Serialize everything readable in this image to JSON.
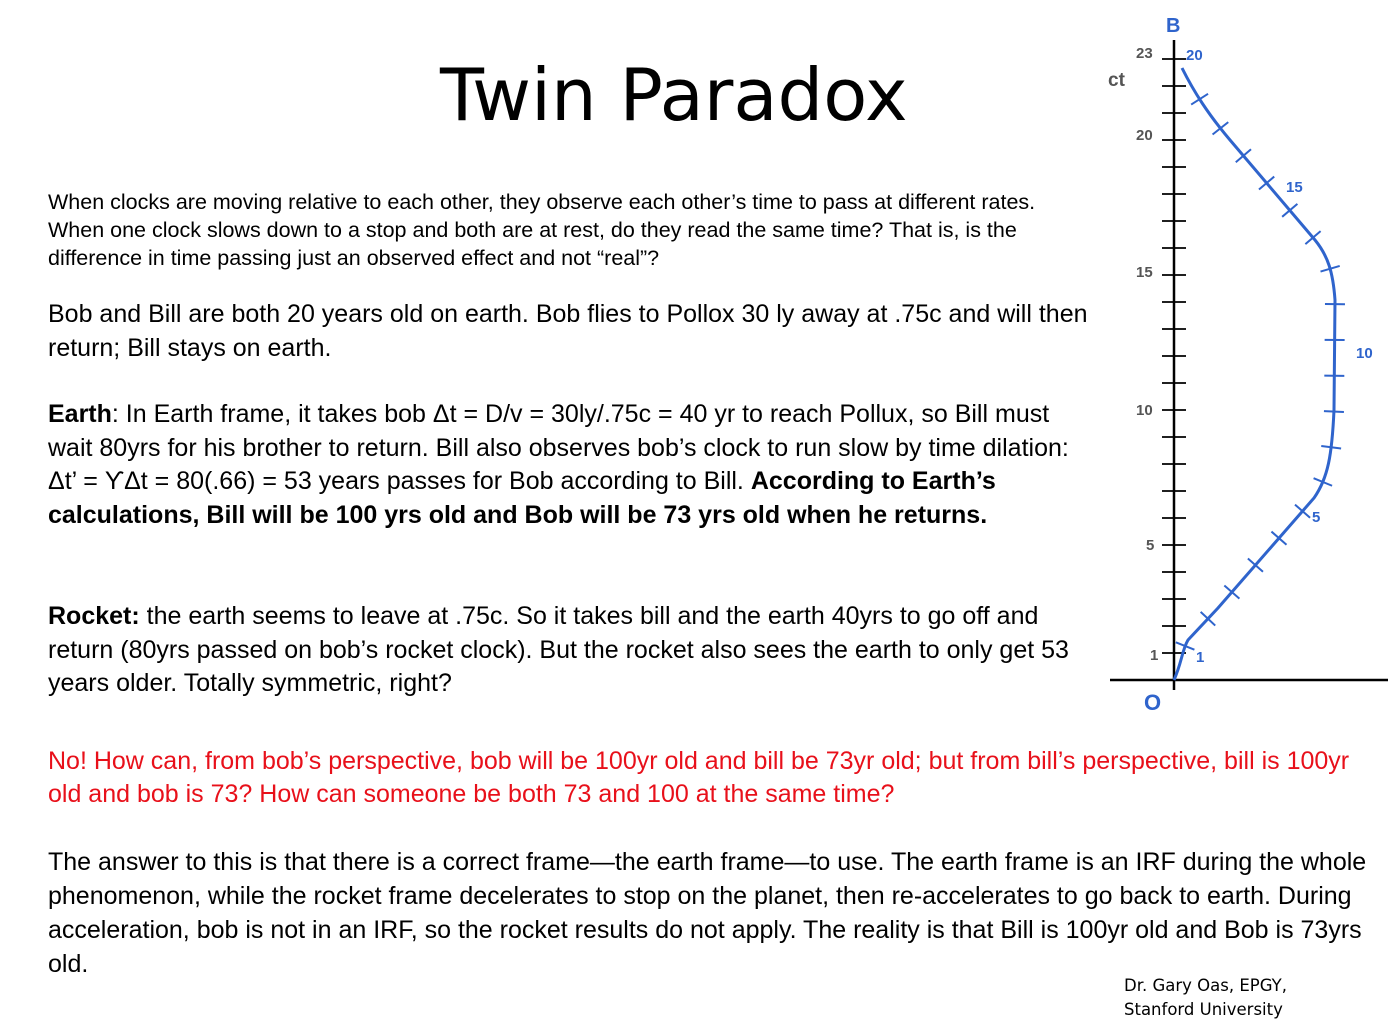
{
  "slide": {
    "title": "Twin Paradox",
    "intro": "When clocks are moving relative to each other, they observe each other’s time to pass at different rates. When one clock slows down to a stop and both are at rest, do they read the same time? That is, is the difference in time passing just an observed effect and not “real”?",
    "setup": "Bob and Bill are both 20 years old on earth. Bob flies to Pollox 30 ly away at .75c and will then return; Bill stays on earth.",
    "earth": {
      "label": "Earth",
      "text": ": In Earth frame, it takes bob Δt = D/v = 30ly/.75c = 40 yr to reach Pollux, so Bill must wait 80yrs for his brother to return. Bill also observes bob’s clock to run slow by time dilation: Δt’ = ϒΔt = 80(.66) = 53 years passes for Bob according to Bill. ",
      "bold": "According to Earth’s calculations, Bill will be 100 yrs old and Bob will be 73 yrs old when he returns."
    },
    "rocket": {
      "label": "Rocket:",
      "text": " the earth seems to leave at .75c. So it takes bill and the earth 40yrs to go off and return (80yrs passed on bob’s rocket clock). But the rocket also sees the earth to only get 53 years older. Totally symmetric, right?"
    },
    "red_question": "No! How can, from bob’s perspective, bob will be 100yr old and bill be 73yr old; but from bill’s perspective, bill is 100yr old and bob is 73? How can someone be both 73 and 100 at the same time?",
    "answer": "The answer to this is that there is a correct frame—the earth frame—to use. The earth frame is an IRF during the whole phenomenon, while the rocket frame decelerates to stop on the planet, then re-accelerates to go back to earth. During acceleration, bob is not in an IRF, so the rocket results do not apply. The reality is that Bill is 100yr old and Bob is 73yrs old.",
    "credit_line1": "Dr. Gary Oas, EPGY,",
    "credit_line2": "Stanford University"
  },
  "diagram": {
    "top_label": "B",
    "axis_label": "ct",
    "origin_label": "O",
    "axis_ticks": [
      "1",
      "5",
      "10",
      "15",
      "20",
      "23"
    ],
    "worldline_labels": [
      "1",
      "5",
      "10",
      "15",
      "20"
    ],
    "colors": {
      "axis": "#000000",
      "worldline": "#2f64cc",
      "label": "#555555"
    }
  }
}
